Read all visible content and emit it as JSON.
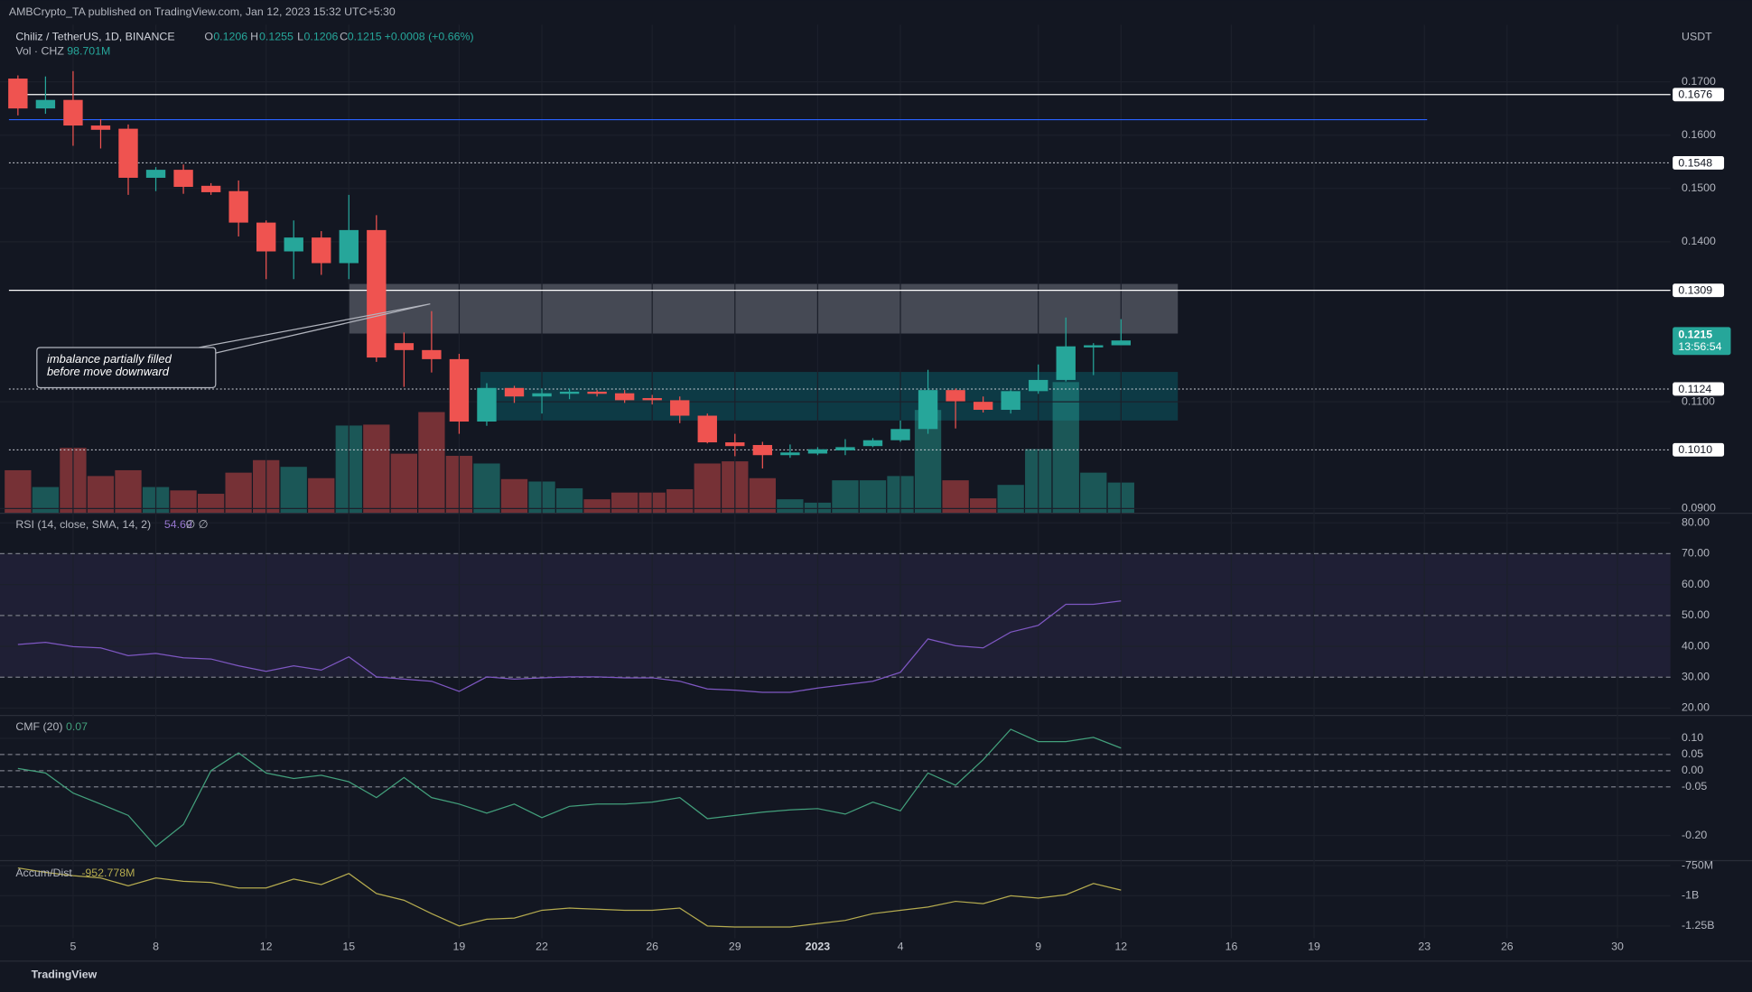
{
  "publisher": "AMBCrypto_TA published on TradingView.com, Jan 12, 2023 15:32 UTC+5:30",
  "footer": "TradingView",
  "chart_data": [
    {
      "type": "candlestick",
      "title": "Chiliz / TetherUS, 1D, BINANCE",
      "currency": "USDT",
      "header_keys": [
        "O",
        "H",
        "L",
        "C"
      ],
      "change_label": "+0.0008 (+0.66%)",
      "up_color": "#26a69a",
      "down_color": "#ef5350",
      "grid": true,
      "x": [
        0,
        1,
        2,
        3,
        4,
        5,
        6,
        7,
        8,
        9,
        10,
        11,
        12,
        13,
        14,
        15,
        16,
        17,
        18,
        19,
        20,
        21,
        22,
        23,
        24,
        25,
        26,
        27,
        28,
        29,
        30,
        31,
        32,
        33,
        34,
        35,
        36,
        37,
        38,
        39,
        40
      ],
      "open": [
        0.1706,
        0.165,
        0.1666,
        0.1618,
        0.1612,
        0.152,
        0.1535,
        0.1505,
        0.1495,
        0.1436,
        0.1382,
        0.1408,
        0.136,
        0.1422,
        0.121,
        0.1197,
        0.118,
        0.1063,
        0.1126,
        0.111,
        0.1115,
        0.1119,
        0.1116,
        0.1107,
        0.1103,
        0.1074,
        0.1024,
        0.1019,
        0.1,
        0.1003,
        0.1009,
        0.1017,
        0.1028,
        0.1049,
        0.1122,
        0.11,
        0.1085,
        0.112,
        0.1141,
        0.1202,
        0.1206
      ],
      "high": [
        0.1712,
        0.171,
        0.172,
        0.163,
        0.162,
        0.154,
        0.1545,
        0.151,
        0.1515,
        0.144,
        0.144,
        0.142,
        0.1488,
        0.145,
        0.123,
        0.127,
        0.119,
        0.1135,
        0.113,
        0.1125,
        0.1125,
        0.1122,
        0.1122,
        0.1113,
        0.111,
        0.1078,
        0.104,
        0.1025,
        0.102,
        0.1015,
        0.103,
        0.1032,
        0.1065,
        0.116,
        0.1125,
        0.111,
        0.1122,
        0.117,
        0.1258,
        0.121,
        0.1255
      ],
      "low": [
        0.1637,
        0.164,
        0.158,
        0.1575,
        0.1488,
        0.1495,
        0.149,
        0.1488,
        0.141,
        0.133,
        0.133,
        0.1338,
        0.133,
        0.1175,
        0.1128,
        0.1155,
        0.104,
        0.1055,
        0.1098,
        0.1078,
        0.1105,
        0.111,
        0.1098,
        0.1095,
        0.106,
        0.1022,
        0.0998,
        0.0975,
        0.0995,
        0.1,
        0.1,
        0.1015,
        0.1025,
        0.104,
        0.105,
        0.108,
        0.1078,
        0.1115,
        0.1138,
        0.115,
        0.1206
      ],
      "close": [
        0.165,
        0.1666,
        0.1618,
        0.161,
        0.152,
        0.1535,
        0.1503,
        0.1493,
        0.1436,
        0.1382,
        0.1408,
        0.136,
        0.1422,
        0.1183,
        0.1197,
        0.118,
        0.1063,
        0.1126,
        0.111,
        0.1116,
        0.1119,
        0.1115,
        0.1103,
        0.1103,
        0.1074,
        0.1024,
        0.1017,
        0.1,
        0.1005,
        0.1011,
        0.1015,
        0.1028,
        0.1049,
        0.1122,
        0.1101,
        0.1085,
        0.112,
        0.1141,
        0.1204,
        0.1206,
        0.1215
      ],
      "volume": {
        "name": "Vol · CHZ",
        "last_label": "98.701M",
        "values": [
          139,
          84,
          212,
          120,
          139,
          84,
          73,
          62,
          131,
          172,
          150,
          113,
          285,
          288,
          193,
          329,
          186,
          161,
          110,
          102,
          80,
          44,
          66,
          66,
          77,
          161,
          168,
          113,
          44,
          33,
          106,
          106,
          120,
          336,
          106,
          47,
          91,
          208,
          427,
          131,
          98.701
        ]
      },
      "xlim": [
        -0.65,
        59.72
      ],
      "xticks": [
        {
          "value": 2,
          "label": "5"
        },
        {
          "value": 5,
          "label": "8"
        },
        {
          "value": 9,
          "label": "12"
        },
        {
          "value": 12,
          "label": "15"
        },
        {
          "value": 16,
          "label": "19"
        },
        {
          "value": 19,
          "label": "22"
        },
        {
          "value": 23,
          "label": "26"
        },
        {
          "value": 26,
          "label": "29"
        },
        {
          "value": 29,
          "label": "2023"
        },
        {
          "value": 32,
          "label": "4"
        },
        {
          "value": 37,
          "label": "9"
        },
        {
          "value": 40,
          "label": "12"
        },
        {
          "value": 44,
          "label": "16"
        },
        {
          "value": 47,
          "label": "19"
        },
        {
          "value": 51,
          "label": "23"
        },
        {
          "value": 54,
          "label": "26"
        },
        {
          "value": 58,
          "label": "30"
        }
      ],
      "ylim": [
        0.0892,
        0.1807
      ],
      "yticks": [
        {
          "value": 0.17,
          "label": "0.1700"
        },
        {
          "value": 0.16,
          "label": "0.1600"
        },
        {
          "value": 0.15,
          "label": "0.1500"
        },
        {
          "value": 0.14,
          "label": "0.1400"
        },
        {
          "value": 0.11,
          "label": "0.1100"
        },
        {
          "value": 0.09,
          "label": "0.0900"
        }
      ],
      "levels": [
        {
          "value": 0.1676,
          "label": "0.1676",
          "style": "solid",
          "color": "#ffffff"
        },
        {
          "value": 0.1629,
          "style": "solid",
          "color": "#2962ff",
          "end": 51.1
        },
        {
          "value": 0.1548,
          "label": "0.1548",
          "style": "dotted",
          "color": "#d1d4dc"
        },
        {
          "value": 0.1309,
          "label": "0.1309",
          "style": "solid",
          "color": "#ffffff"
        },
        {
          "value": 0.1124,
          "label": "0.1124",
          "style": "dotted",
          "color": "#d1d4dc"
        },
        {
          "value": 0.101,
          "label": "0.1010",
          "style": "dotted",
          "color": "#d1d4dc"
        }
      ],
      "zones": [
        {
          "x": [
            12,
            42.06
          ],
          "y": [
            0.1228,
            0.1321
          ],
          "color": "rgba(178,181,190,0.32)"
        },
        {
          "x": [
            16.77,
            42.06
          ],
          "y": [
            0.1065,
            0.1156
          ],
          "color": "rgba(0,150,160,0.28)"
        }
      ],
      "last_price": {
        "value": 0.1215,
        "countdown": "13:56:54"
      },
      "annotation": [
        "imbalance partially filled",
        "before move downward"
      ]
    },
    {
      "type": "line",
      "title": "RSI (14, close, SMA, 14, 2)",
      "suffix": "∅ ∅",
      "color": "#7e57c2",
      "values": [
        40.6,
        41.3,
        39.9,
        39.5,
        37.0,
        37.7,
        36.3,
        35.9,
        33.7,
        31.9,
        33.7,
        32.3,
        36.6,
        30.1,
        29.4,
        28.7,
        25.4,
        30.1,
        29.4,
        29.8,
        30.1,
        30.1,
        29.8,
        29.8,
        28.7,
        26.2,
        25.8,
        25.1,
        25.1,
        26.5,
        27.6,
        28.7,
        31.6,
        42.4,
        40.2,
        39.5,
        44.6,
        46.8,
        53.6,
        53.6,
        54.69
      ],
      "ylim": [
        17.8,
        82.9
      ],
      "yticks": [
        {
          "value": 80,
          "label": "80.00"
        },
        {
          "value": 70,
          "label": "70.00"
        },
        {
          "value": 60,
          "label": "60.00"
        },
        {
          "value": 50,
          "label": "50.00"
        },
        {
          "value": 40,
          "label": "40.00"
        },
        {
          "value": 30,
          "label": "30.00"
        },
        {
          "value": 20,
          "label": "20.00"
        }
      ],
      "band": [
        30,
        70
      ],
      "band_color": "rgba(126,87,194,0.12)",
      "guides": [
        70,
        50,
        30
      ]
    },
    {
      "type": "line",
      "title": "CMF (20)",
      "color": "#43a07c",
      "values": [
        0.007,
        -0.007,
        -0.069,
        -0.103,
        -0.138,
        -0.234,
        -0.166,
        0.0,
        0.055,
        -0.007,
        -0.024,
        -0.014,
        -0.034,
        -0.083,
        -0.021,
        -0.083,
        -0.103,
        -0.131,
        -0.103,
        -0.145,
        -0.11,
        -0.103,
        -0.103,
        -0.097,
        -0.083,
        -0.148,
        -0.138,
        -0.128,
        -0.121,
        -0.117,
        -0.134,
        -0.097,
        -0.124,
        -0.007,
        -0.045,
        0.034,
        0.128,
        0.09,
        0.09,
        0.103,
        0.07
      ],
      "ylim": [
        -0.276,
        0.169
      ],
      "yticks": [
        {
          "value": 0.1,
          "label": "0.10"
        },
        0.05,
        {
          "value": 0,
          "label": "0.00"
        },
        -0.05,
        {
          "value": -0.2,
          "label": "-0.20"
        }
      ],
      "guides": [
        0.05,
        0,
        -0.05
      ]
    },
    {
      "type": "line",
      "title": "Accum/Dist",
      "color": "#b5ab4f",
      "last_label": "-952.778M",
      "values": [
        -769,
        -806,
        -833,
        -852,
        -917,
        -852,
        -880,
        -889,
        -935,
        -935,
        -861,
        -907,
        -815,
        -981,
        -1037,
        -1148,
        -1250,
        -1194,
        -1185,
        -1120,
        -1102,
        -1111,
        -1120,
        -1120,
        -1102,
        -1250,
        -1259,
        -1259,
        -1259,
        -1231,
        -1204,
        -1148,
        -1120,
        -1093,
        -1046,
        -1065,
        -1000,
        -1019,
        -991,
        -898,
        -952.778
      ],
      "ylim": [
        -1352,
        -713
      ],
      "yticks": [
        {
          "value": -750,
          "label": "-750M"
        },
        {
          "value": -1000,
          "label": "-1B"
        },
        {
          "value": -1250,
          "label": "-1.25B"
        }
      ]
    }
  ]
}
